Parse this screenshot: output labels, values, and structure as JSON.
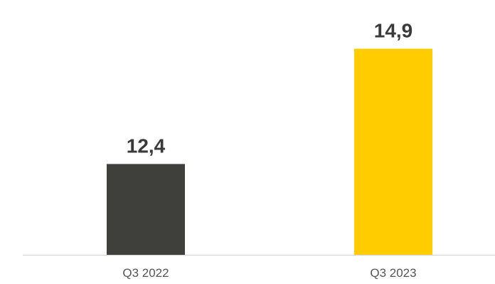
{
  "chart_data": {
    "type": "bar",
    "categories": [
      "Q3 2022",
      "Q3 2023"
    ],
    "values": [
      12.4,
      14.9
    ],
    "value_labels": [
      "12,4",
      "14,9"
    ],
    "bar_colors": [
      "#3f403b",
      "#ffcc00"
    ],
    "axis_color": "#d9d9d9",
    "ylim": [
      10.43,
      15.0
    ],
    "grid": false,
    "legend": "none",
    "title": "",
    "xlabel": "",
    "ylabel": ""
  }
}
